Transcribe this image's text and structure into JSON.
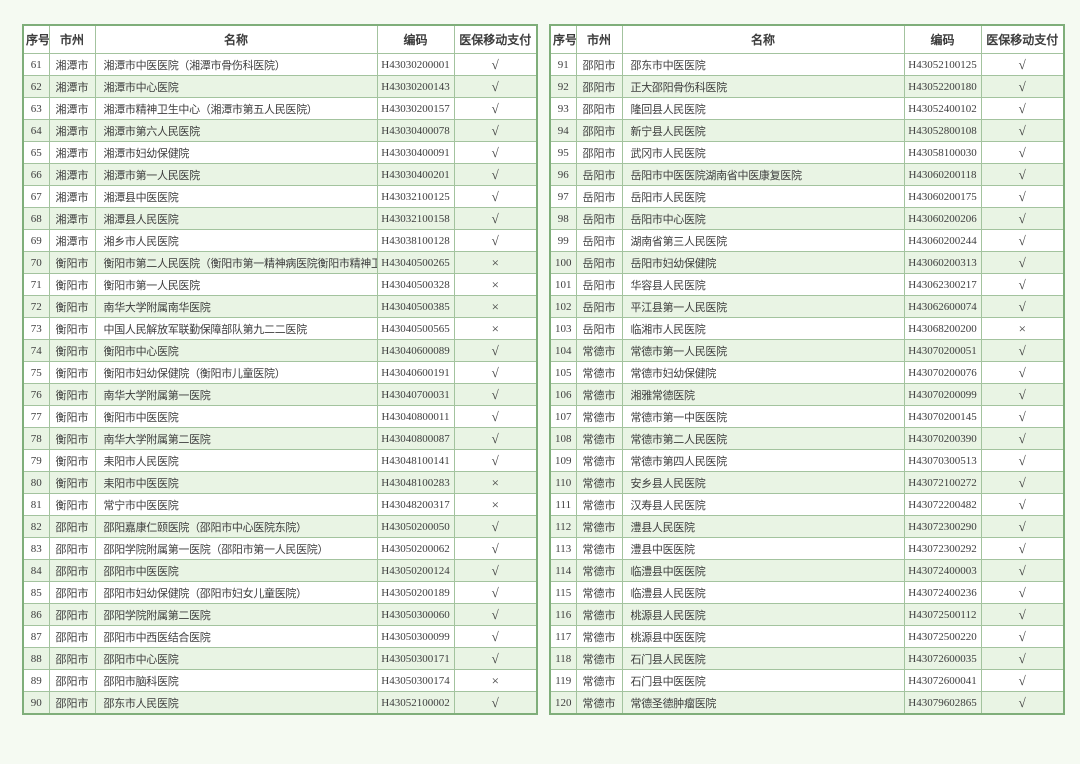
{
  "table_meta": {
    "headers": [
      "序号",
      "市州",
      "名称",
      "编码",
      "医保移动支付"
    ],
    "check_yes_symbol": "√",
    "check_no_symbol": "×",
    "colors": {
      "outer_border": "#7fae7a",
      "cell_border": "#a3c39e",
      "alt_row_background": "#e9f4e4",
      "row_background": "#ffffff",
      "text": "#3d3d3d",
      "page_background": "#f5faf2"
    }
  },
  "left_table": {
    "rows": [
      [
        "61",
        "湘潭市",
        "湘潭市中医医院（湘潭市骨伤科医院）",
        "H43030200001",
        "√"
      ],
      [
        "62",
        "湘潭市",
        "湘潭市中心医院",
        "H43030200143",
        "√"
      ],
      [
        "63",
        "湘潭市",
        "湘潭市精神卫生中心（湘潭市第五人民医院）",
        "H43030200157",
        "√"
      ],
      [
        "64",
        "湘潭市",
        "湘潭市第六人民医院",
        "H43030400078",
        "√"
      ],
      [
        "65",
        "湘潭市",
        "湘潭市妇幼保健院",
        "H43030400091",
        "√"
      ],
      [
        "66",
        "湘潭市",
        "湘潭市第一人民医院",
        "H43030400201",
        "√"
      ],
      [
        "67",
        "湘潭市",
        "湘潭县中医医院",
        "H43032100125",
        "√"
      ],
      [
        "68",
        "湘潭市",
        "湘潭县人民医院",
        "H43032100158",
        "√"
      ],
      [
        "69",
        "湘潭市",
        "湘乡市人民医院",
        "H43038100128",
        "√"
      ],
      [
        "70",
        "衡阳市",
        "衡阳市第二人民医院（衡阳市第一精神病医院衡阳市精神卫生中心）",
        "H43040500265",
        "×"
      ],
      [
        "71",
        "衡阳市",
        "衡阳市第一人民医院",
        "H43040500328",
        "×"
      ],
      [
        "72",
        "衡阳市",
        "南华大学附属南华医院",
        "H43040500385",
        "×"
      ],
      [
        "73",
        "衡阳市",
        "中国人民解放军联勤保障部队第九二二医院",
        "H43040500565",
        "×"
      ],
      [
        "74",
        "衡阳市",
        "衡阳市中心医院",
        "H43040600089",
        "√"
      ],
      [
        "75",
        "衡阳市",
        "衡阳市妇幼保健院（衡阳市儿童医院）",
        "H43040600191",
        "√"
      ],
      [
        "76",
        "衡阳市",
        "南华大学附属第一医院",
        "H43040700031",
        "√"
      ],
      [
        "77",
        "衡阳市",
        "衡阳市中医医院",
        "H43040800011",
        "√"
      ],
      [
        "78",
        "衡阳市",
        "南华大学附属第二医院",
        "H43040800087",
        "√"
      ],
      [
        "79",
        "衡阳市",
        "耒阳市人民医院",
        "H43048100141",
        "√"
      ],
      [
        "80",
        "衡阳市",
        "耒阳市中医医院",
        "H43048100283",
        "×"
      ],
      [
        "81",
        "衡阳市",
        "常宁市中医医院",
        "H43048200317",
        "×"
      ],
      [
        "82",
        "邵阳市",
        "邵阳嘉康仁颐医院（邵阳市中心医院东院）",
        "H43050200050",
        "√"
      ],
      [
        "83",
        "邵阳市",
        "邵阳学院附属第一医院（邵阳市第一人民医院）",
        "H43050200062",
        "√"
      ],
      [
        "84",
        "邵阳市",
        "邵阳市中医医院",
        "H43050200124",
        "√"
      ],
      [
        "85",
        "邵阳市",
        "邵阳市妇幼保健院（邵阳市妇女儿童医院）",
        "H43050200189",
        "√"
      ],
      [
        "86",
        "邵阳市",
        "邵阳学院附属第二医院",
        "H43050300060",
        "√"
      ],
      [
        "87",
        "邵阳市",
        "邵阳市中西医结合医院",
        "H43050300099",
        "√"
      ],
      [
        "88",
        "邵阳市",
        "邵阳市中心医院",
        "H43050300171",
        "√"
      ],
      [
        "89",
        "邵阳市",
        "邵阳市脑科医院",
        "H43050300174",
        "×"
      ],
      [
        "90",
        "邵阳市",
        "邵东市人民医院",
        "H43052100002",
        "√"
      ]
    ]
  },
  "right_table": {
    "rows": [
      [
        "91",
        "邵阳市",
        "邵东市中医医院",
        "H43052100125",
        "√"
      ],
      [
        "92",
        "邵阳市",
        "正大邵阳骨伤科医院",
        "H43052200180",
        "√"
      ],
      [
        "93",
        "邵阳市",
        "隆回县人民医院",
        "H43052400102",
        "√"
      ],
      [
        "94",
        "邵阳市",
        "新宁县人民医院",
        "H43052800108",
        "√"
      ],
      [
        "95",
        "邵阳市",
        "武冈市人民医院",
        "H43058100030",
        "√"
      ],
      [
        "96",
        "岳阳市",
        "岳阳市中医医院湖南省中医康复医院",
        "H43060200118",
        "√"
      ],
      [
        "97",
        "岳阳市",
        "岳阳市人民医院",
        "H43060200175",
        "√"
      ],
      [
        "98",
        "岳阳市",
        "岳阳市中心医院",
        "H43060200206",
        "√"
      ],
      [
        "99",
        "岳阳市",
        "湖南省第三人民医院",
        "H43060200244",
        "√"
      ],
      [
        "100",
        "岳阳市",
        "岳阳市妇幼保健院",
        "H43060200313",
        "√"
      ],
      [
        "101",
        "岳阳市",
        "华容县人民医院",
        "H43062300217",
        "√"
      ],
      [
        "102",
        "岳阳市",
        "平江县第一人民医院",
        "H43062600074",
        "√"
      ],
      [
        "103",
        "岳阳市",
        "临湘市人民医院",
        "H43068200200",
        "×"
      ],
      [
        "104",
        "常德市",
        "常德市第一人民医院",
        "H43070200051",
        "√"
      ],
      [
        "105",
        "常德市",
        "常德市妇幼保健院",
        "H43070200076",
        "√"
      ],
      [
        "106",
        "常德市",
        "湘雅常德医院",
        "H43070200099",
        "√"
      ],
      [
        "107",
        "常德市",
        "常德市第一中医医院",
        "H43070200145",
        "√"
      ],
      [
        "108",
        "常德市",
        "常德市第二人民医院",
        "H43070200390",
        "√"
      ],
      [
        "109",
        "常德市",
        "常德市第四人民医院",
        "H43070300513",
        "√"
      ],
      [
        "110",
        "常德市",
        "安乡县人民医院",
        "H43072100272",
        "√"
      ],
      [
        "111",
        "常德市",
        "汉寿县人民医院",
        "H43072200482",
        "√"
      ],
      [
        "112",
        "常德市",
        "澧县人民医院",
        "H43072300290",
        "√"
      ],
      [
        "113",
        "常德市",
        "澧县中医医院",
        "H43072300292",
        "√"
      ],
      [
        "114",
        "常德市",
        "临澧县中医医院",
        "H43072400003",
        "√"
      ],
      [
        "115",
        "常德市",
        "临澧县人民医院",
        "H43072400236",
        "√"
      ],
      [
        "116",
        "常德市",
        "桃源县人民医院",
        "H43072500112",
        "√"
      ],
      [
        "117",
        "常德市",
        "桃源县中医医院",
        "H43072500220",
        "√"
      ],
      [
        "118",
        "常德市",
        "石门县人民医院",
        "H43072600035",
        "√"
      ],
      [
        "119",
        "常德市",
        "石门县中医医院",
        "H43072600041",
        "√"
      ],
      [
        "120",
        "常德市",
        "常德圣德肿瘤医院",
        "H43079602865",
        "√"
      ]
    ]
  }
}
